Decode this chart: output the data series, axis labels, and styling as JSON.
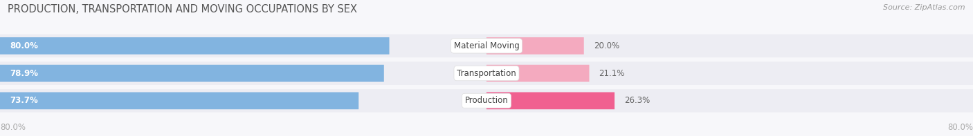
{
  "title": "PRODUCTION, TRANSPORTATION AND MOVING OCCUPATIONS BY SEX",
  "source": "Source: ZipAtlas.com",
  "categories": [
    "Material Moving",
    "Transportation",
    "Production"
  ],
  "male_pct": [
    80.0,
    78.9,
    73.7
  ],
  "female_pct": [
    20.0,
    21.1,
    26.3
  ],
  "male_color": "#82B4E0",
  "female_colors": [
    "#F4AABF",
    "#F4AABF",
    "#F06090"
  ],
  "bar_bg_color": "#E8E8F0",
  "row_bg_color": "#EDEDF3",
  "fig_bg_color": "#F7F7FA",
  "title_color": "#555555",
  "source_color": "#999999",
  "label_color": "#555555",
  "pct_color_male": "#FFFFFF",
  "pct_color_female": "#666666",
  "cat_label_color": "#444444",
  "axis_tick_color": "#AAAAAA",
  "axis_label_left": "80.0%",
  "axis_label_right": "80.0%",
  "title_fontsize": 10.5,
  "source_fontsize": 8,
  "label_fontsize": 8.5,
  "tick_fontsize": 8.5
}
